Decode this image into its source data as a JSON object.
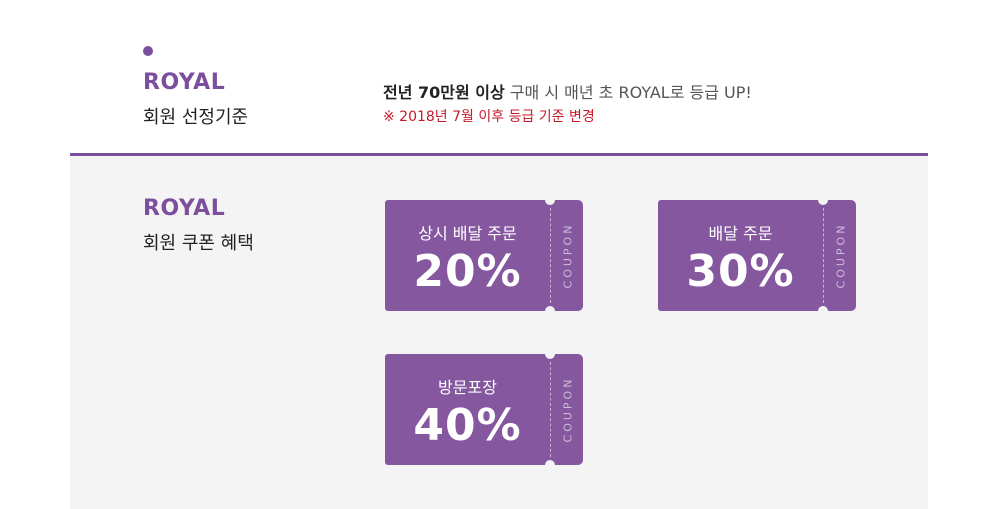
{
  "criteria_section": {
    "grade_name": "ROYAL",
    "subtitle": "회원 선정기준",
    "criteria_bold": "전년 70만원 이상",
    "criteria_rest": " 구매 시 매년 초 ROYAL로 등급 UP!",
    "note": "※ 2018년 7월 이후 등급 기준 변경"
  },
  "benefit_section": {
    "grade_name": "ROYAL",
    "subtitle": "회원 쿠폰 혜택"
  },
  "coupon_tag": "COUPON",
  "coupons": [
    {
      "label": "상시 배달 주문",
      "value": "20%"
    },
    {
      "label": "배달 주문",
      "value": "30%"
    },
    {
      "label": "방문포장",
      "value": "40%"
    }
  ],
  "colors": {
    "accent": "#7b4f9d",
    "coupon": "#84579f",
    "note": "#c8182a",
    "panel": "#f4f4f4"
  }
}
